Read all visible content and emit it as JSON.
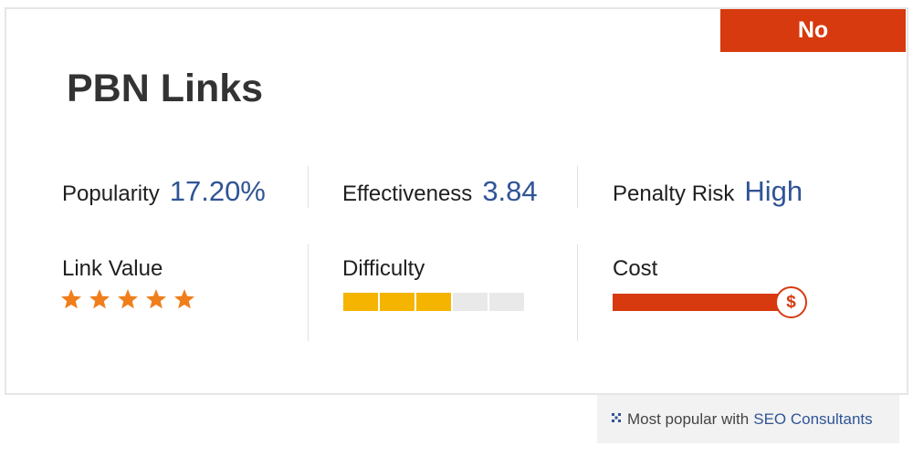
{
  "badge": {
    "label": "No",
    "color": "#d63a0e"
  },
  "title": "PBN Links",
  "metrics": {
    "popularity": {
      "label": "Popularity",
      "value": "17.20%"
    },
    "effectiveness": {
      "label": "Effectiveness",
      "value": "3.84"
    },
    "penalty_risk": {
      "label": "Penalty Risk",
      "value": "High"
    }
  },
  "link_value": {
    "label": "Link Value",
    "stars": 5,
    "max_stars": 5,
    "star_color": "#f07e1a"
  },
  "difficulty": {
    "label": "Difficulty",
    "level": 3,
    "max_level": 5,
    "fill_color": "#f5b400"
  },
  "cost": {
    "label": "Cost",
    "symbol": "$",
    "level": 1.0,
    "color": "#d63a0e"
  },
  "footer": {
    "prefix": "Most popular with",
    "link": "SEO Consultants",
    "icon": "grid-dots-icon"
  },
  "colors": {
    "value_blue": "#2f5496",
    "text": "#1f1f1f"
  }
}
